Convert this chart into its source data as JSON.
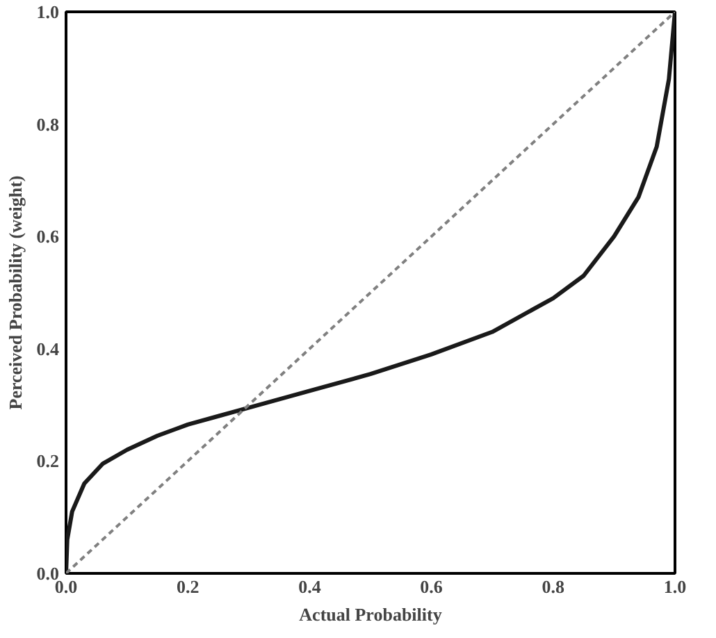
{
  "chart_data": {
    "type": "line",
    "xlabel": "Actual Probability",
    "ylabel": "Perceived Probability (weight)",
    "xlim": [
      0,
      1
    ],
    "ylim": [
      0,
      1
    ],
    "xticks": [
      {
        "value": 0,
        "label": "0.0"
      },
      0.2,
      0.4,
      0.6,
      0.8,
      {
        "value": 1,
        "label": "1.0"
      }
    ],
    "yticks": [
      {
        "value": 0,
        "label": "0.0"
      },
      0.2,
      0.4,
      0.6,
      0.8,
      {
        "value": 1,
        "label": "1.0"
      }
    ],
    "series": [
      {
        "color": "#1a1a1a",
        "line_style": "solid",
        "x": [
          0,
          0.002,
          0.01,
          0.03,
          0.06,
          0.1,
          0.15,
          0.2,
          0.25,
          0.3,
          0.4,
          0.5,
          0.6,
          0.7,
          0.8,
          0.85,
          0.9,
          0.94,
          0.97,
          0.99,
          1.0
        ],
        "values": [
          0,
          0.06,
          0.11,
          0.16,
          0.195,
          0.22,
          0.245,
          0.265,
          0.28,
          0.295,
          0.325,
          0.355,
          0.39,
          0.43,
          0.49,
          0.53,
          0.6,
          0.67,
          0.76,
          0.88,
          1.0
        ]
      },
      {
        "color": "#808080",
        "line_style": "dashed",
        "x": [
          0,
          1
        ],
        "values": [
          0,
          1
        ]
      }
    ],
    "grid": false
  }
}
